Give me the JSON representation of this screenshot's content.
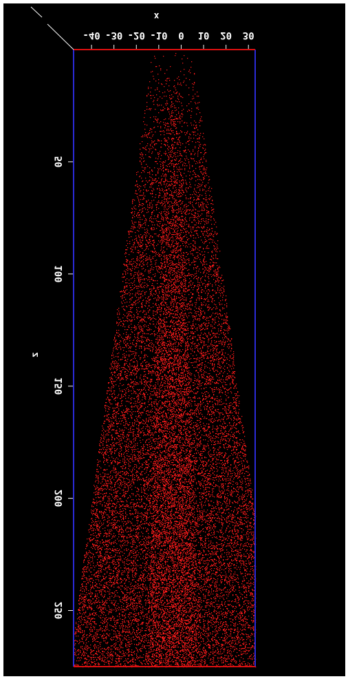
{
  "chart_data": {
    "type": "scatter",
    "title": "",
    "xlabel": "x",
    "ylabel": "z",
    "xlim": [
      -48,
      33
    ],
    "ylim": [
      0,
      275
    ],
    "x_ticks": [
      -40,
      -30,
      -20,
      -10,
      0,
      10,
      20,
      30
    ],
    "x_tick_labels": [
      "-40",
      "-30",
      "-20",
      "-10",
      "0",
      "10",
      "20",
      "30"
    ],
    "z_ticks": [
      50,
      100,
      150,
      200,
      250
    ],
    "z_tick_labels": [
      "50",
      "100",
      "150",
      "200",
      "250"
    ],
    "point_color": "#ff1a1a",
    "background_color": "#000000",
    "frame_color": "#2b2bd9",
    "edge_color": "#e01010",
    "grid": false,
    "distribution": {
      "z_range": [
        0,
        275
      ],
      "x_halfwidth_at_top": 9,
      "x_halfwidth_at_bottom": 46,
      "x_center": -4,
      "approx_points": 22000
    }
  }
}
